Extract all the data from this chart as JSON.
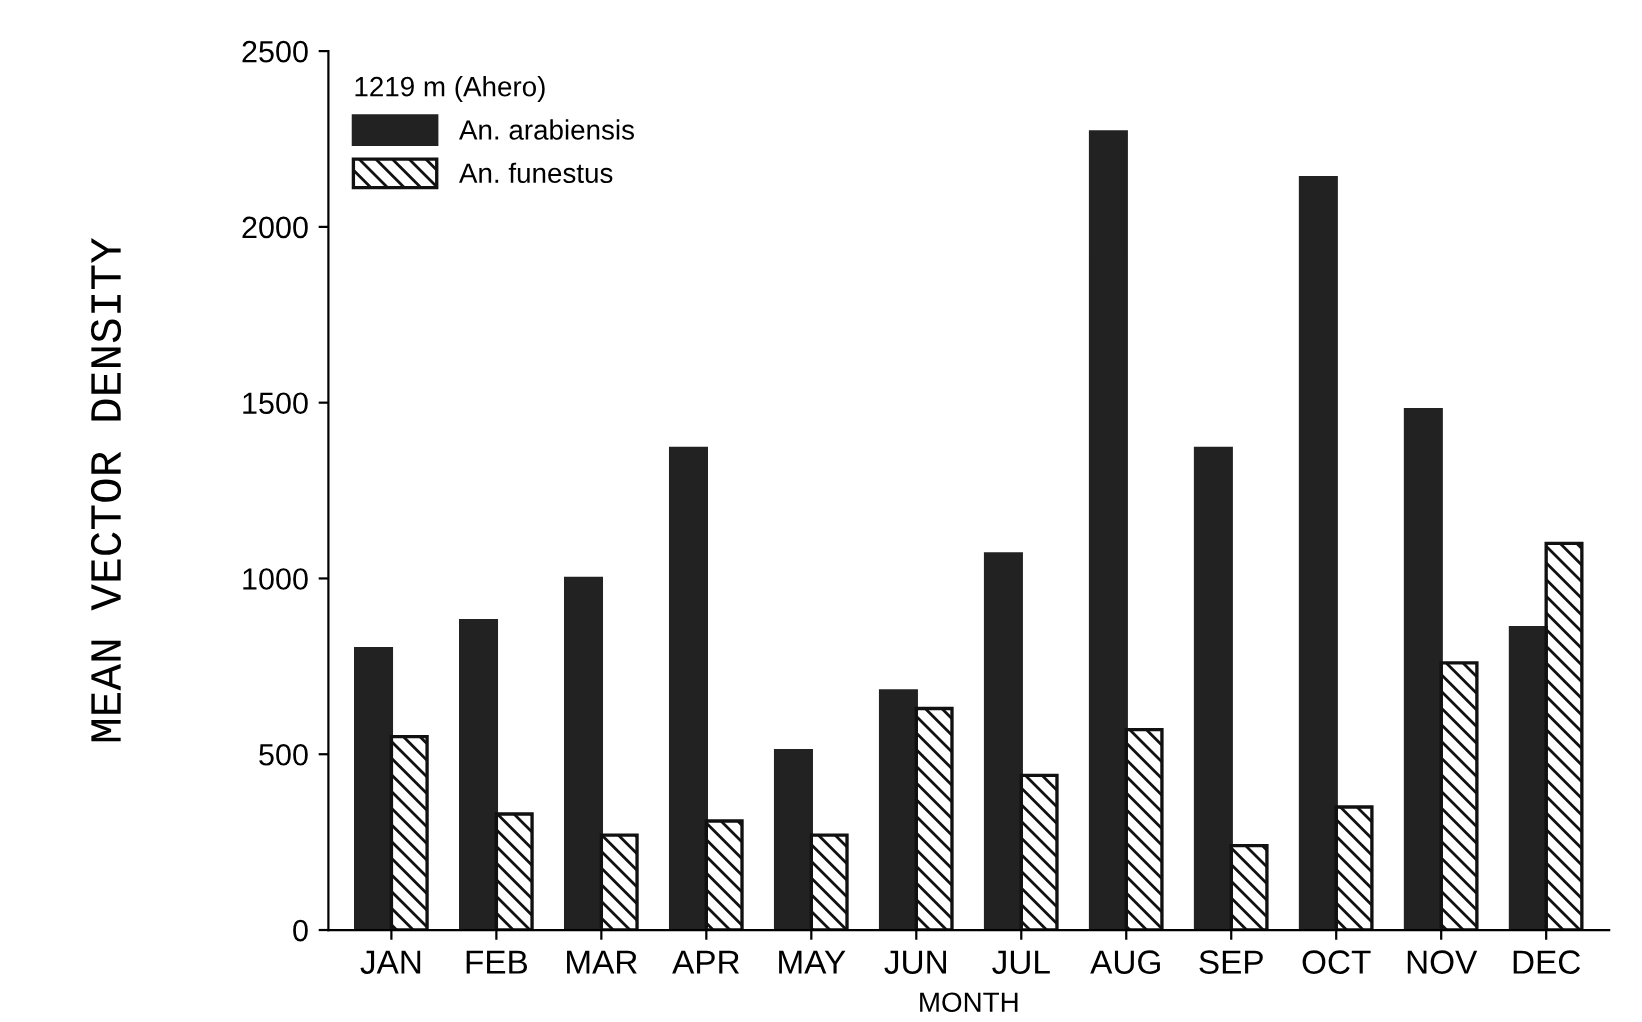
{
  "chart_data": {
    "type": "bar",
    "xlabel": "MONTH",
    "ylabel": "MEAN VECTOR DENSITY",
    "legend_title": "1219 m (Ahero)",
    "categories": [
      "JAN",
      "FEB",
      "MAR",
      "APR",
      "MAY",
      "JUN",
      "JUL",
      "AUG",
      "SEP",
      "OCT",
      "NOV",
      "DEC"
    ],
    "series": [
      {
        "name": "An. arabiensis",
        "color": "#222222",
        "values": [
          800,
          880,
          1000,
          1370,
          510,
          680,
          1070,
          2270,
          1370,
          2140,
          1480,
          860
        ]
      },
      {
        "name": "An. funestus",
        "color": "#111111",
        "values": [
          550,
          330,
          270,
          310,
          270,
          630,
          440,
          570,
          240,
          350,
          760,
          1100
        ]
      }
    ],
    "ylim": [
      0,
      2500
    ],
    "yticks": [
      0,
      500,
      1000,
      1500,
      2000,
      2500
    ],
    "grid": false,
    "legend": "top left"
  }
}
